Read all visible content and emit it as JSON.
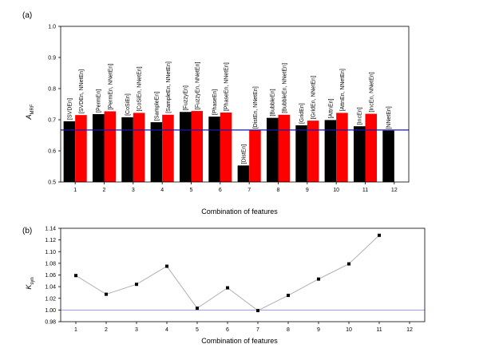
{
  "chart_data": [
    {
      "panel": "(a)",
      "type": "bar",
      "ylabel": "A_MRF",
      "ylabel_main": "A",
      "ylabel_sub": "MRF",
      "xlabel": "Combination of features",
      "ylim": [
        0.5,
        1.0
      ],
      "yticks": [
        "0.5",
        "0.6",
        "0.7",
        "0.8",
        "0.9",
        "1.0"
      ],
      "categories": [
        "1",
        "2",
        "3",
        "4",
        "5",
        "6",
        "7",
        "8",
        "9",
        "10",
        "11",
        "12"
      ],
      "series": [
        {
          "color": "#000000",
          "values": [
            0.695,
            0.718,
            0.708,
            0.692,
            0.725,
            0.71,
            0.553,
            0.706,
            0.682,
            0.699,
            0.679,
            0.665
          ],
          "labels": [
            "[SVDEn]",
            "[PermEn]",
            "[CoSiEn]",
            "[SampleEn]",
            "[FuzzyEn]",
            "[PhaseEn]",
            "[DistEn]",
            "[BubbleEn]",
            "[GridEn]",
            "[AttnEn]",
            "[IncEn]",
            "[NNetEn]"
          ]
        },
        {
          "color": "#ff0000",
          "values": [
            0.715,
            0.727,
            0.722,
            0.716,
            0.728,
            0.723,
            0.666,
            0.716,
            0.697,
            0.722,
            0.719,
            null
          ],
          "labels": [
            "[SVDEn, NNetEn]",
            "[PermEn, NNetEn]",
            "[CoSiEn, NNetEn]",
            "[SampleEn, NNetEn]",
            "[FuzzyEn, NNetEn]",
            "[PhaseEn, NNetEn]",
            "[DistEn, NNetEn]",
            "[BubbleEn, NNetEn]",
            "[GridEn, NNetEn]",
            "[AttnEn, NNetEn]",
            "[IncEn, NNetEn]",
            ""
          ]
        }
      ],
      "reference_line": {
        "y": 0.667,
        "color": "#1a1aa8"
      }
    },
    {
      "panel": "(b)",
      "type": "line",
      "ylabel": "K_syn",
      "ylabel_main": "K",
      "ylabel_sub": "syn",
      "xlabel": "Combination of features",
      "ylim": [
        0.98,
        1.14
      ],
      "yticks": [
        "0.98",
        "1.00",
        "1.02",
        "1.04",
        "1.06",
        "1.08",
        "1.10",
        "1.12",
        "1.14"
      ],
      "xticks": [
        "1",
        "2",
        "3",
        "4",
        "5",
        "6",
        "7",
        "8",
        "9",
        "10",
        "11",
        "12"
      ],
      "x": [
        1,
        2,
        3,
        4,
        5,
        6,
        7,
        8,
        9,
        10,
        11
      ],
      "y": [
        1.059,
        1.027,
        1.044,
        1.075,
        1.003,
        1.038,
        0.999,
        1.025,
        1.053,
        1.079,
        1.128
      ],
      "line_color": "#b0b0b0",
      "marker_color": "#000000",
      "reference_line": {
        "y": 1.0,
        "color": "#7c7cf0"
      }
    }
  ]
}
